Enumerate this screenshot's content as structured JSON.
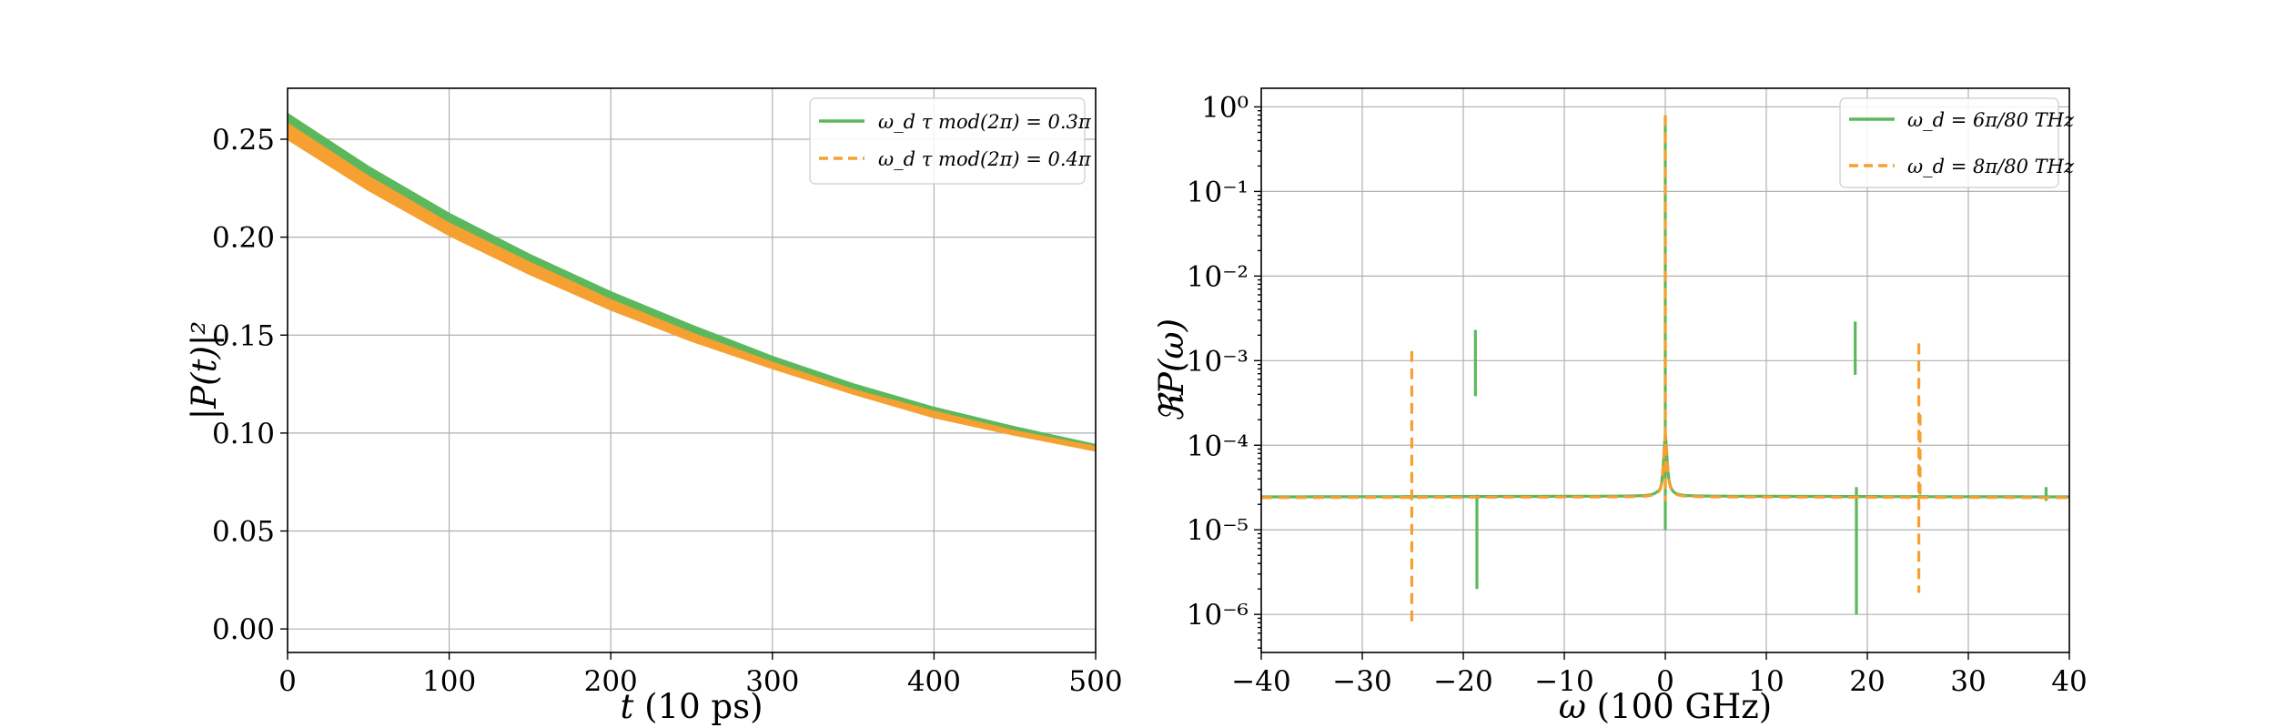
{
  "colors": {
    "green": "#5cb85c",
    "orange": "#f5a030",
    "grid": "#b0b0b0",
    "frame": "#000000"
  },
  "chart_data": [
    {
      "type": "line",
      "xlabel_var": "t",
      "xlabel_unit": " (10 ps)",
      "ylabel": "|P(t)|²",
      "xlim": [
        0,
        500
      ],
      "ylim": [
        -0.012,
        0.276
      ],
      "xticks": [
        0,
        100,
        200,
        300,
        400,
        500
      ],
      "xtick_labels": [
        "0",
        "100",
        "200",
        "300",
        "400",
        "500"
      ],
      "yticks": [
        0.0,
        0.05,
        0.1,
        0.15,
        0.2,
        0.25
      ],
      "ytick_labels": [
        "0.00",
        "0.05",
        "0.10",
        "0.15",
        "0.20",
        "0.25"
      ],
      "grid": true,
      "legend_position": "top-right",
      "series": [
        {
          "name": "ω_d τ mod(2π) = 0.3π",
          "style": "solid",
          "color": "#5cb85c",
          "band_upper": [
            0.263,
            0.236,
            0.212,
            0.191,
            0.172,
            0.155,
            0.139,
            0.125,
            0.113,
            0.103,
            0.094
          ],
          "band_lower": [
            0.255,
            0.229,
            0.206,
            0.186,
            0.168,
            0.151,
            0.136,
            0.122,
            0.111,
            0.101,
            0.092
          ]
        },
        {
          "name": "ω_d τ mod(2π) = 0.4π",
          "style": "dashed",
          "color": "#f5a030",
          "band_upper": [
            0.258,
            0.231,
            0.207,
            0.187,
            0.168,
            0.151,
            0.136,
            0.122,
            0.111,
            0.101,
            0.093
          ],
          "band_lower": [
            0.25,
            0.224,
            0.201,
            0.181,
            0.163,
            0.147,
            0.133,
            0.12,
            0.108,
            0.099,
            0.091
          ]
        }
      ],
      "x": [
        0,
        50,
        100,
        150,
        200,
        250,
        300,
        350,
        400,
        450,
        500
      ]
    },
    {
      "type": "line",
      "yscale": "log",
      "xlabel_var": "ω",
      "xlabel_unit": " (100 GHz)",
      "ylabel": "ℜP(ω)",
      "xlim": [
        -40,
        40
      ],
      "ylim_exp": [
        -6.45,
        0.22
      ],
      "xticks": [
        -40,
        -30,
        -20,
        -10,
        0,
        10,
        20,
        30,
        40
      ],
      "xtick_labels": [
        "−40",
        "−30",
        "−20",
        "−10",
        "0",
        "10",
        "20",
        "30",
        "40"
      ],
      "yticks_exp": [
        0,
        -1,
        -2,
        -3,
        -4,
        -5,
        -6
      ],
      "ytick_labels": [
        "10⁰",
        "10⁻¹",
        "10⁻²",
        "10⁻³",
        "10⁻⁴",
        "10⁻⁵",
        "10⁻⁶"
      ],
      "grid": true,
      "legend_position": "top-right",
      "baseline": 2.5e-05,
      "series": [
        {
          "name": "ω_d = 6π/80 THz",
          "style": "solid",
          "color": "#5cb85c",
          "peak": {
            "x": 0,
            "max": 0.75,
            "min": 1e-05,
            "tail_width": 1.5
          },
          "spikes": [
            {
              "x": -18.8,
              "top": 0.0023,
              "bottom": 0.00038,
              "offset": 0.0
            },
            {
              "x": -18.8,
              "top": 2.6e-05,
              "bottom": 2e-06,
              "offset": 0.15
            },
            {
              "x": 18.8,
              "top": 0.0029,
              "bottom": 0.00068,
              "offset": 0.0
            },
            {
              "x": 18.8,
              "top": 3.2e-05,
              "bottom": 1e-06,
              "offset": 0.12
            },
            {
              "x": 37.7,
              "top": 3.2e-05,
              "bottom": 2.2e-05,
              "offset": 0.0
            }
          ]
        },
        {
          "name": "ω_d = 8π/80 THz",
          "style": "dashed",
          "color": "#f5a030",
          "peak": {
            "x": 0,
            "max": 0.8,
            "min": 2.2e-05,
            "tail_width": 1.2
          },
          "spikes": [
            {
              "x": -25.1,
              "top": 0.0013,
              "bottom": 7.5e-07,
              "offset": 0.0
            },
            {
              "x": 25.1,
              "top": 0.0016,
              "bottom": 1.8e-06,
              "offset": 0.0
            },
            {
              "x": 25.1,
              "top": 0.00023,
              "bottom": 2.6e-05,
              "offset": 0.12
            }
          ]
        }
      ]
    }
  ]
}
